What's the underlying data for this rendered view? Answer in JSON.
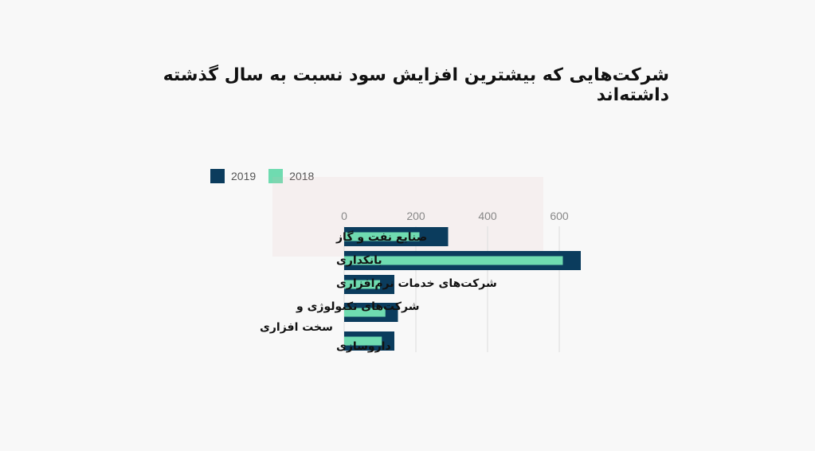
{
  "title": "شرکت‌هایی که بیشترین افزایش سود نسبت به سال گذشته داشته‌اند",
  "chart_data": {
    "type": "bar",
    "orientation": "horizontal",
    "title": "شرکت‌هایی که بیشترین افزایش سود نسبت به سال گذشته داشته‌اند",
    "categories": [
      "صنایع نفت و گاز",
      "بانکداری",
      "شرکت‌های خدمات نرم‌افزاری",
      "شرکت‌های تکنولوژی و سخت افزاری",
      "داروسازی"
    ],
    "category_label_lines": [
      [
        "صنایع نفت و گاز"
      ],
      [
        "بانکداری"
      ],
      [
        "شرکت‌های خدمات نرم‌افزاری"
      ],
      [
        "شرکت‌های تکنولوژی و",
        "سخت افزاری"
      ],
      [
        "داروسازی"
      ]
    ],
    "series": [
      {
        "name": "2019",
        "color": "#0b3c5d",
        "values": [
          290,
          660,
          140,
          150,
          140
        ]
      },
      {
        "name": "2018",
        "color": "#6fdbb0",
        "values": [
          210,
          610,
          100,
          115,
          105
        ]
      }
    ],
    "xlim": [
      0,
      650
    ],
    "xticks": [
      0,
      200,
      400,
      600
    ],
    "grid": true,
    "legend_position": "top-left",
    "xaxis_position": "top"
  }
}
